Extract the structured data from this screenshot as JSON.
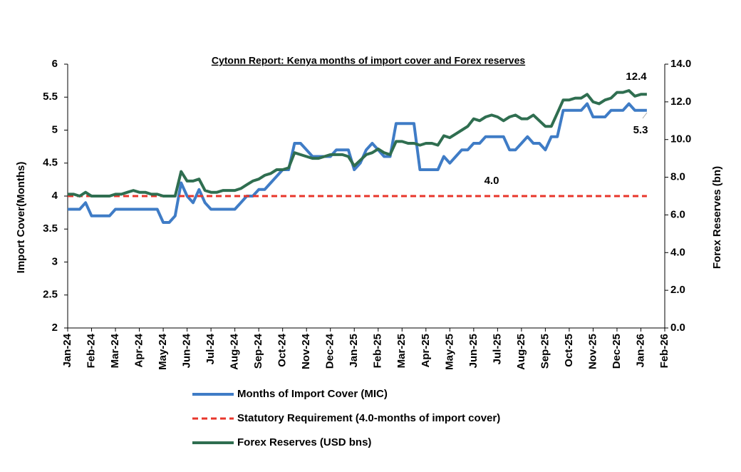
{
  "chart_data": {
    "type": "line",
    "title": "Cytonn Report: Kenya months of import cover and Forex reserves",
    "y_label": "Import Cover(Months)",
    "y2_label": "Forex Reserves (bn)",
    "categories": [
      "Jan-24",
      null,
      null,
      null,
      "Feb-24",
      null,
      null,
      null,
      "Mar-24",
      null,
      null,
      null,
      "Apr-24",
      null,
      null,
      null,
      "May-24",
      null,
      null,
      null,
      "Jun-24",
      null,
      null,
      null,
      "Jul-24",
      null,
      null,
      null,
      "Aug-24",
      null,
      null,
      null,
      "Sep-24",
      null,
      null,
      null,
      "Oct-24",
      null,
      null,
      null,
      "Nov-24",
      null,
      null,
      null,
      "Dec-24",
      null,
      null,
      null,
      "Jan-25",
      null,
      null,
      null,
      "Feb-25",
      null,
      null,
      null,
      "Mar-25",
      null,
      null,
      null,
      "Apr-25",
      null,
      null,
      null,
      "May-25",
      null,
      null,
      null,
      "Jun-25",
      null,
      null,
      null,
      "Jul-25",
      null,
      null,
      null,
      "Aug-25",
      null,
      null,
      null,
      "Sep-25",
      null,
      null,
      null,
      "Oct-25",
      null,
      null,
      null,
      "Nov-25",
      null,
      null,
      null,
      "Dec-25",
      null,
      null,
      null,
      "Jan-26",
      null,
      null,
      null,
      "Feb-26"
    ],
    "ylim": [
      2,
      6
    ],
    "yticks": [
      2,
      2.5,
      3,
      3.5,
      4,
      4.5,
      5,
      5.5,
      6
    ],
    "y2lim": [
      0,
      14
    ],
    "y2ticks": [
      {
        "value": 0,
        "label": "0.0"
      },
      {
        "value": 2,
        "label": "2.0"
      },
      {
        "value": 4,
        "label": "4.0"
      },
      {
        "value": 6,
        "label": "6.0"
      },
      {
        "value": 8,
        "label": "8.0"
      },
      {
        "value": 10,
        "label": "10.0"
      },
      {
        "value": 12,
        "label": "12.0"
      },
      {
        "value": 14,
        "label": "14.0"
      }
    ],
    "grid": false,
    "series": [
      {
        "name": "Months of Import Cover (MIC)",
        "color": "#3f7cc6",
        "axis": "y",
        "dashed": false,
        "values": [
          3.8,
          3.8,
          3.8,
          3.9,
          3.7,
          3.7,
          3.7,
          3.7,
          3.8,
          3.8,
          3.8,
          3.8,
          3.8,
          3.8,
          3.8,
          3.8,
          3.6,
          3.6,
          3.7,
          4.2,
          4.0,
          3.9,
          4.1,
          3.9,
          3.8,
          3.8,
          3.8,
          3.8,
          3.8,
          3.9,
          4.0,
          4.0,
          4.1,
          4.1,
          4.2,
          4.3,
          4.4,
          4.4,
          4.8,
          4.8,
          4.7,
          4.6,
          4.6,
          4.6,
          4.6,
          4.7,
          4.7,
          4.7,
          4.4,
          4.5,
          4.7,
          4.8,
          4.7,
          4.6,
          4.6,
          5.1,
          5.1,
          5.1,
          5.1,
          4.4,
          4.4,
          4.4,
          4.4,
          4.6,
          4.5,
          4.6,
          4.7,
          4.7,
          4.8,
          4.8,
          4.9,
          4.9,
          4.9,
          4.9,
          4.7,
          4.7,
          4.8,
          4.9,
          4.8,
          4.8,
          4.7,
          4.9,
          4.9,
          5.3,
          5.3,
          5.3,
          5.3,
          5.4,
          5.2,
          5.2,
          5.2,
          5.3,
          5.3,
          5.3,
          5.4,
          5.3,
          5.3,
          5.3,
          null,
          null,
          null
        ]
      },
      {
        "name": "Statutory Requirement (4.0-months of import cover)",
        "color": "#e8362b",
        "axis": "y",
        "dashed": true,
        "values": [
          4,
          4,
          4,
          4,
          4,
          4,
          4,
          4,
          4,
          4,
          4,
          4,
          4,
          4,
          4,
          4,
          4,
          4,
          4,
          4,
          4,
          4,
          4,
          4,
          4,
          4,
          4,
          4,
          4,
          4,
          4,
          4,
          4,
          4,
          4,
          4,
          4,
          4,
          4,
          4,
          4,
          4,
          4,
          4,
          4,
          4,
          4,
          4,
          4,
          4,
          4,
          4,
          4,
          4,
          4,
          4,
          4,
          4,
          4,
          4,
          4,
          4,
          4,
          4,
          4,
          4,
          4,
          4,
          4,
          4,
          4,
          4,
          4,
          4,
          4,
          4,
          4,
          4,
          4,
          4,
          4,
          4,
          4,
          4,
          4,
          4,
          4,
          4,
          4,
          4,
          4,
          4,
          4,
          4,
          4,
          4,
          4,
          4,
          null,
          null,
          null
        ]
      },
      {
        "name": "Forex Reserves (USD bns)",
        "color": "#2f6e50",
        "axis": "y2",
        "dashed": false,
        "values": [
          7.1,
          7.1,
          7.0,
          7.2,
          7.0,
          7.0,
          7.0,
          7.0,
          7.1,
          7.1,
          7.2,
          7.3,
          7.2,
          7.2,
          7.1,
          7.1,
          7.0,
          7.0,
          7.0,
          8.3,
          7.8,
          7.8,
          7.9,
          7.3,
          7.2,
          7.2,
          7.3,
          7.3,
          7.3,
          7.4,
          7.6,
          7.8,
          7.9,
          8.1,
          8.2,
          8.4,
          8.4,
          8.5,
          9.3,
          9.2,
          9.1,
          9.0,
          9.0,
          9.1,
          9.2,
          9.2,
          9.2,
          9.1,
          8.6,
          8.9,
          9.2,
          9.3,
          9.5,
          9.3,
          9.2,
          9.9,
          9.9,
          9.8,
          9.8,
          9.7,
          9.8,
          9.8,
          9.7,
          10.2,
          10.1,
          10.3,
          10.5,
          10.7,
          11.1,
          11.0,
          11.2,
          11.3,
          11.2,
          11.0,
          11.2,
          11.3,
          11.1,
          11.1,
          11.3,
          11.0,
          10.7,
          10.7,
          11.4,
          12.1,
          12.1,
          12.2,
          12.2,
          12.4,
          12.0,
          11.9,
          12.1,
          12.2,
          12.5,
          12.5,
          12.6,
          12.3,
          12.4,
          12.4,
          null,
          null,
          null
        ]
      }
    ],
    "annotations": [
      "12.4",
      "5.3",
      "4.0"
    ]
  }
}
